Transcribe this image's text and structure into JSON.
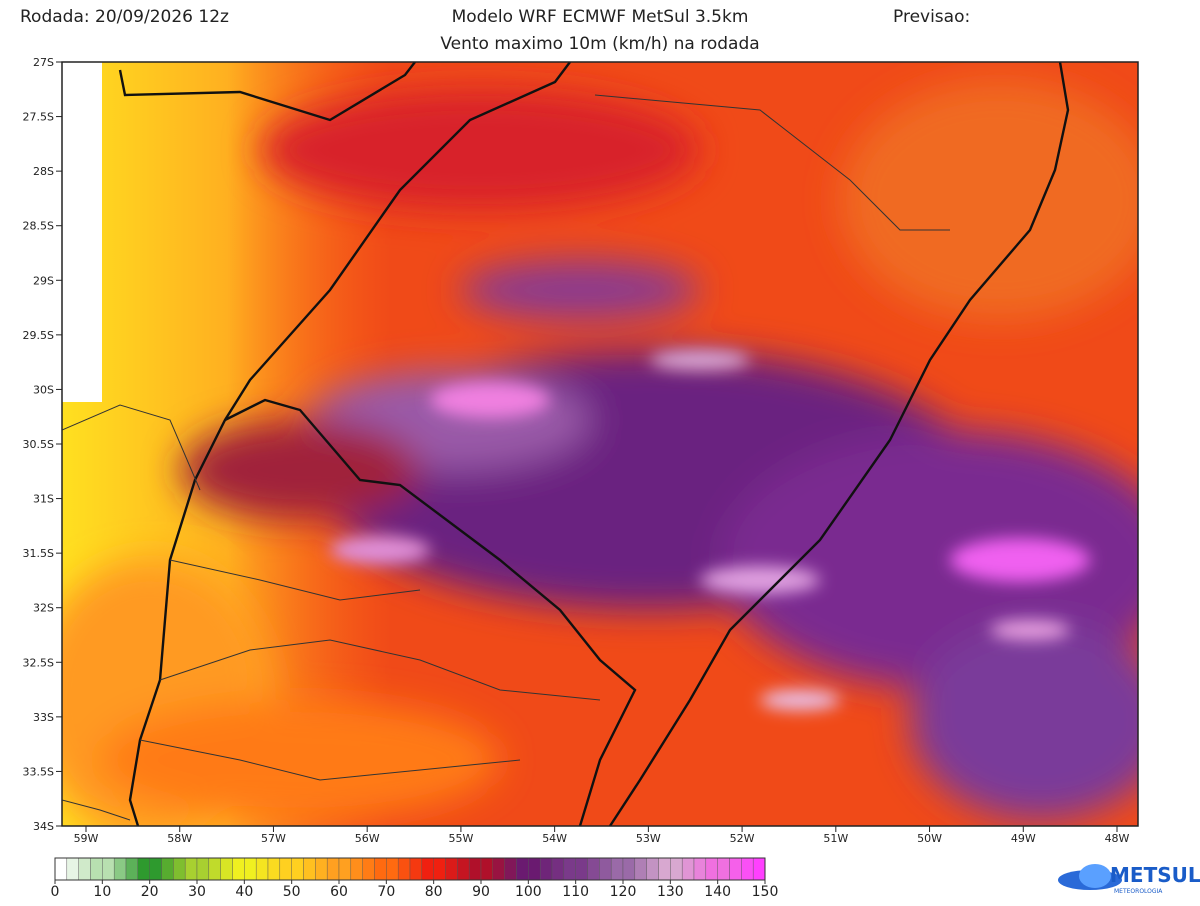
{
  "header": {
    "run_label": "Rodada: 20/09/2026 12z",
    "model": "Modelo WRF ECMWF MetSul 3.5km",
    "forecast": "Previsao:",
    "subtitle": "Vento maximo 10m (km/h) na rodada"
  },
  "map": {
    "lat_ticks": [
      "27S",
      "27.5S",
      "28S",
      "28.5S",
      "29S",
      "29.5S",
      "30S",
      "30.5S",
      "31S",
      "31.5S",
      "32S",
      "32.5S",
      "33S",
      "33.5S",
      "34S"
    ],
    "lon_ticks": [
      "59W",
      "58W",
      "57W",
      "56W",
      "55W",
      "54W",
      "53W",
      "52W",
      "51W",
      "50W",
      "49W",
      "48W"
    ]
  },
  "colorbar": {
    "ticks": [
      0,
      10,
      20,
      30,
      40,
      50,
      60,
      70,
      80,
      90,
      100,
      110,
      120,
      130,
      140,
      150
    ],
    "colors": [
      "#ffffff",
      "#b8e0b0",
      "#2e9a2e",
      "#a8d030",
      "#f0f020",
      "#ffd020",
      "#ffa020",
      "#ff6a10",
      "#f02010",
      "#b0102a",
      "#6a1a70",
      "#7a3a8a",
      "#9a6aa8",
      "#d8a8d0",
      "#f070e0",
      "#ff40ff"
    ]
  },
  "logo": {
    "name": "METSUL",
    "tagline": "METEOROLOGIA"
  }
}
